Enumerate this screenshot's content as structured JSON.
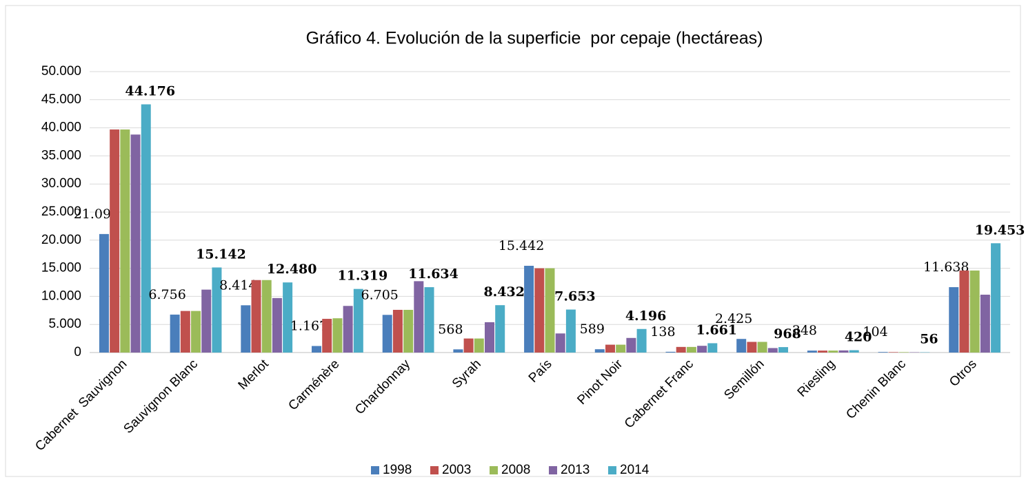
{
  "chart_data": {
    "type": "bar",
    "title": "Gráfico 4. Evolución de la superficie  por cepaje (hectáreas)",
    "categories": [
      "Cabernet  Sauvignon",
      "Sauvignon Blanc",
      "Merlot",
      "Carménère",
      "Chardonnay",
      "Syrah",
      "País",
      "Pinot Noir",
      "Cabernet Franc",
      "Semillón",
      "Riesling",
      "Chenin Blanc",
      "Otros"
    ],
    "series": [
      {
        "name": "1998",
        "color": "#4a7ebb",
        "values": [
          21094,
          6756,
          8414,
          1167,
          6705,
          568,
          15442,
          589,
          138,
          2425,
          348,
          104,
          11638
        ],
        "value_labels": [
          "21.094",
          "6.756",
          "8.414",
          "1.167",
          "6.705",
          "568",
          "15.442",
          "589",
          "138",
          "2.425",
          "348",
          "104",
          "11.638"
        ]
      },
      {
        "name": "2003",
        "color": "#c0504d",
        "values": [
          39700,
          7400,
          12900,
          6000,
          7600,
          2500,
          15000,
          1400,
          1000,
          1900,
          350,
          80,
          14600
        ]
      },
      {
        "name": "2008",
        "color": "#9bbb59",
        "values": [
          39700,
          7400,
          12900,
          6100,
          7600,
          2500,
          15000,
          1400,
          1000,
          1900,
          350,
          80,
          14600
        ]
      },
      {
        "name": "2013",
        "color": "#8064a2",
        "values": [
          38800,
          11200,
          9700,
          8300,
          12700,
          5400,
          3400,
          2600,
          1200,
          800,
          380,
          60,
          10300
        ]
      },
      {
        "name": "2014",
        "color": "#4bacc6",
        "values": [
          44176,
          15142,
          12480,
          11319,
          11634,
          8432,
          7653,
          4196,
          1661,
          968,
          420,
          56,
          19453
        ],
        "value_labels": [
          "44.176",
          "15.142",
          "12.480",
          "11.319",
          "11.634",
          "8.432",
          "7.653",
          "4.196",
          "1.661",
          "968",
          "420",
          "56",
          "19.453"
        ]
      }
    ],
    "ylim": [
      0,
      50000
    ],
    "yticks": [
      0,
      {
        "value": 5000,
        "label": "5.000"
      },
      {
        "value": 10000,
        "label": "10.000"
      },
      {
        "value": 15000,
        "label": "15.000"
      },
      {
        "value": 20000,
        "label": "20.000"
      },
      {
        "value": 25000,
        "label": "25.000"
      },
      {
        "value": 30000,
        "label": "30.000"
      },
      {
        "value": 35000,
        "label": "35.000"
      },
      {
        "value": 40000,
        "label": "40.000"
      },
      {
        "value": 45000,
        "label": "45.000"
      },
      {
        "value": 50000,
        "label": "50.000"
      }
    ],
    "grid": true,
    "legend": "bottom"
  }
}
